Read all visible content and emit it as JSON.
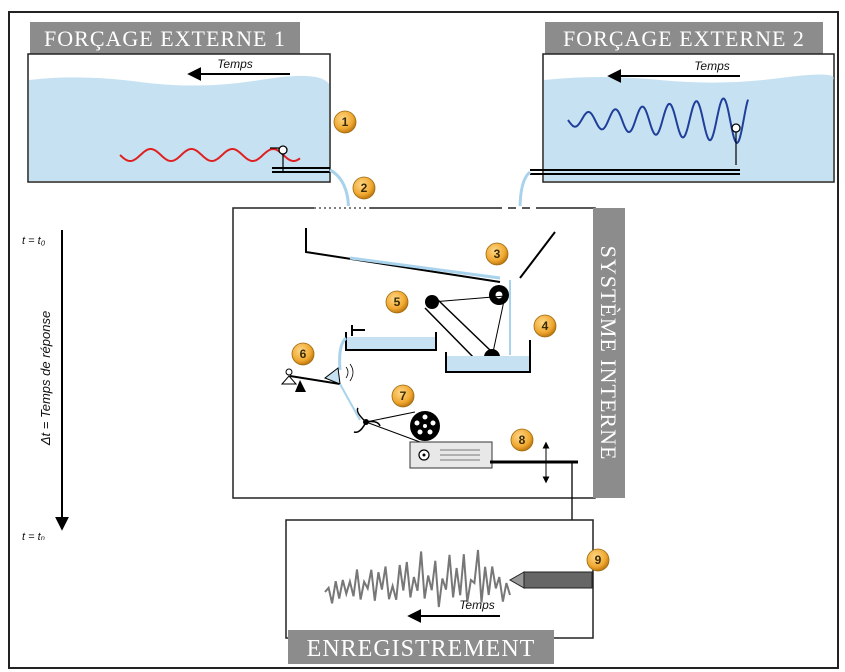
{
  "banners": {
    "external_1": "FORÇAGE EXTERNE 1",
    "external_2": "FORÇAGE EXTERNE 2",
    "internal": "SYSTÈME INTERNE",
    "recording": "ENREGISTREMENT"
  },
  "time_labels": {
    "tank1": "Temps",
    "tank2": "Temps",
    "recording": "Temps"
  },
  "axis": {
    "start": "t = t₀",
    "end": "t = tₙ",
    "delta": "Δt = Temps de réponse"
  },
  "markers": [
    "1",
    "2",
    "3",
    "4",
    "5",
    "6",
    "7",
    "8",
    "9"
  ],
  "colors": {
    "banner": "#8c8c8c",
    "water": "#c6e2f2",
    "marker": "#f0a830",
    "red_wave": "#e02020",
    "blue_wave": "#1f3f9a",
    "record_wave": "#777777"
  }
}
